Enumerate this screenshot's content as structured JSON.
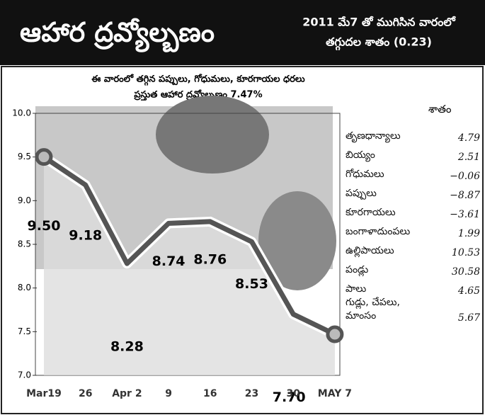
{
  "chart_data": {
    "type": "line",
    "title": "ఆహార ద్రవ్యోల్బణం",
    "subtitle": [
      "2011 మే7 తో ముగిసిన వారంలో",
      "తగ్గుదల శాతం (0.23)"
    ],
    "headline": [
      "ఈ వారంలో తగ్గిన పప్పులు, గోధుమలు, కూరగాయల ధరలు",
      "ప్రస్తుత ఆహార ద్రవ్యోల్బణం 7.47%"
    ],
    "categories": [
      "Mar19",
      "26",
      "Apr 2",
      "9",
      "16",
      "23",
      "30",
      "MAY 7"
    ],
    "values": [
      9.5,
      9.18,
      8.28,
      8.74,
      8.76,
      8.53,
      7.7,
      7.47
    ],
    "value_labels": [
      "9.50",
      "9.18",
      "8.28",
      "8.74",
      "8.76",
      "8.53",
      "7.70",
      null
    ],
    "color": "#555555",
    "ylim": [
      7,
      10
    ],
    "yticks": [
      {
        "value": 7,
        "label": "7.0"
      },
      {
        "value": 7.5,
        "label": "7.5"
      },
      {
        "value": 8,
        "label": "8.0"
      },
      {
        "value": 8.5,
        "label": "8.5"
      },
      {
        "value": 9,
        "label": "9.0"
      },
      {
        "value": 9.5,
        "label": "9.5"
      },
      {
        "value": 10,
        "label": "10.0"
      }
    ]
  },
  "table": {
    "header": "శాతం",
    "rows": [
      [
        "తృణధాన్యాలు",
        "4.79"
      ],
      [
        "బియ్యం",
        "2.51"
      ],
      [
        "గోధుమలు",
        "−0.06"
      ],
      [
        "పప్పులు",
        "−8.87"
      ],
      [
        "కూరగాయలు",
        "−3.61"
      ],
      [
        "బంగాళాదుంపలు",
        "1.99"
      ],
      [
        "ఉల్లిపాయలు",
        "10.53"
      ],
      [
        "పండ్లు",
        "30.58"
      ],
      [
        "పాలు",
        "4.65"
      ],
      [
        "గుడ్లు, చేపలు, మాంసం",
        "5.67"
      ]
    ]
  }
}
